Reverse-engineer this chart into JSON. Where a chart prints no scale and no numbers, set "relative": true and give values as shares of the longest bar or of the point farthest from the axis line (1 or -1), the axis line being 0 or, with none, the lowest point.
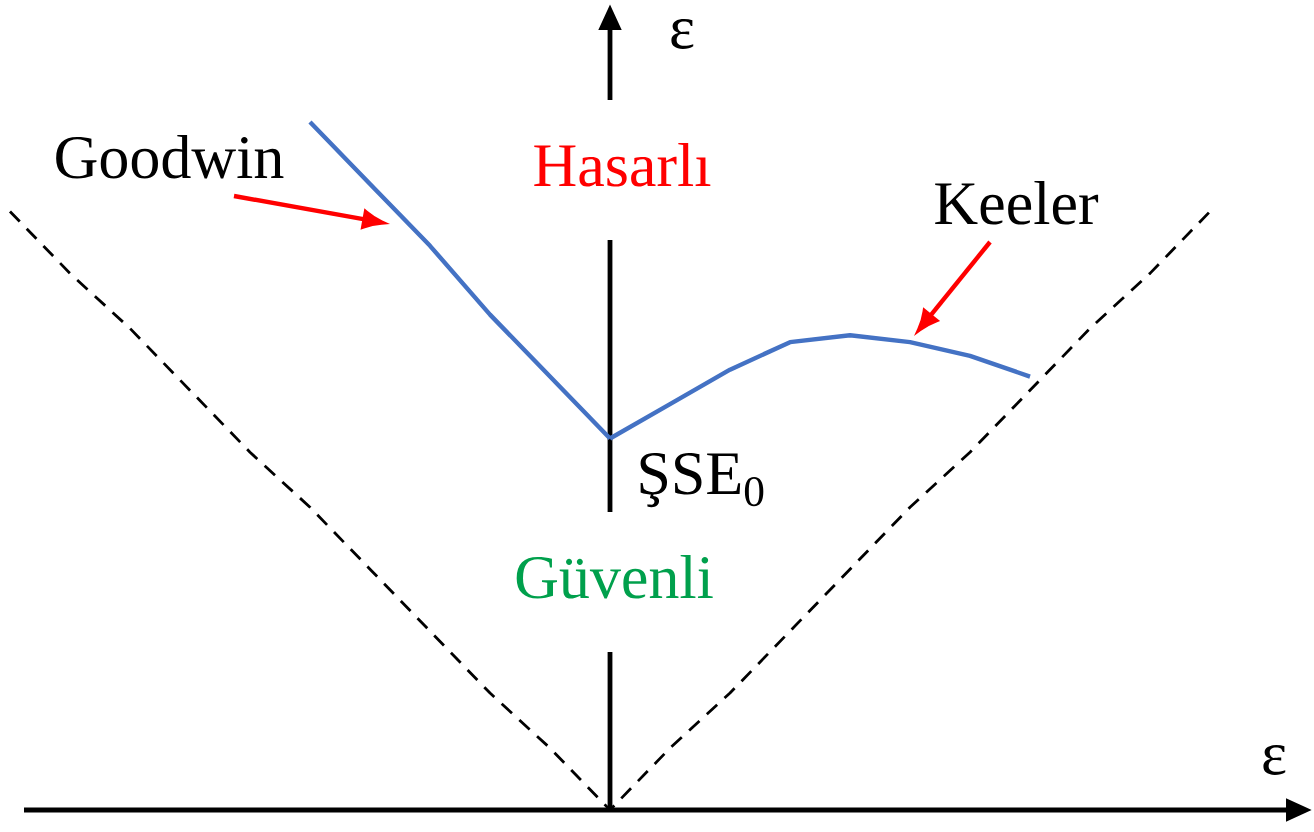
{
  "chart_data": {
    "type": "line",
    "relative": true,
    "xlabel": "ε",
    "ylabel": "ε",
    "categories": [
      null,
      null,
      null,
      null,
      null,
      null,
      null,
      null,
      null,
      null,
      null,
      null,
      null,
      null,
      null,
      null,
      null,
      null,
      null,
      null,
      null
    ],
    "annotations": [
      "Hasarlı",
      "Güvenli",
      "ŞSE$_{0}$"
    ],
    "series": [
      {
        "color": "#000000",
        "line_style": "dashed",
        "values": [
          0.87,
          0.78,
          0.7,
          0.61,
          0.52,
          0.44,
          0.35,
          0.26,
          0.17,
          0.09,
          0,
          0.09,
          0.17,
          0.26,
          0.35,
          0.44,
          0.52,
          0.61,
          0.7,
          0.78,
          0.87
        ]
      },
      {
        "name": "Goodwin",
        "color": "#4472c4",
        "line_style": "solid",
        "values": [
          null,
          null,
          null,
          null,
          null,
          1,
          0.91,
          0.82,
          0.72,
          0.63,
          0.54,
          null,
          null,
          null,
          null,
          null,
          null,
          null,
          null,
          null,
          null
        ]
      },
      {
        "name": "Keeler",
        "color": "#4472c4",
        "line_style": "solid",
        "values": [
          null,
          null,
          null,
          null,
          null,
          null,
          null,
          null,
          null,
          null,
          0.54,
          0.59,
          0.64,
          0.68,
          0.69,
          0.68,
          0.66,
          0.63,
          null,
          null,
          null
        ]
      }
    ]
  }
}
